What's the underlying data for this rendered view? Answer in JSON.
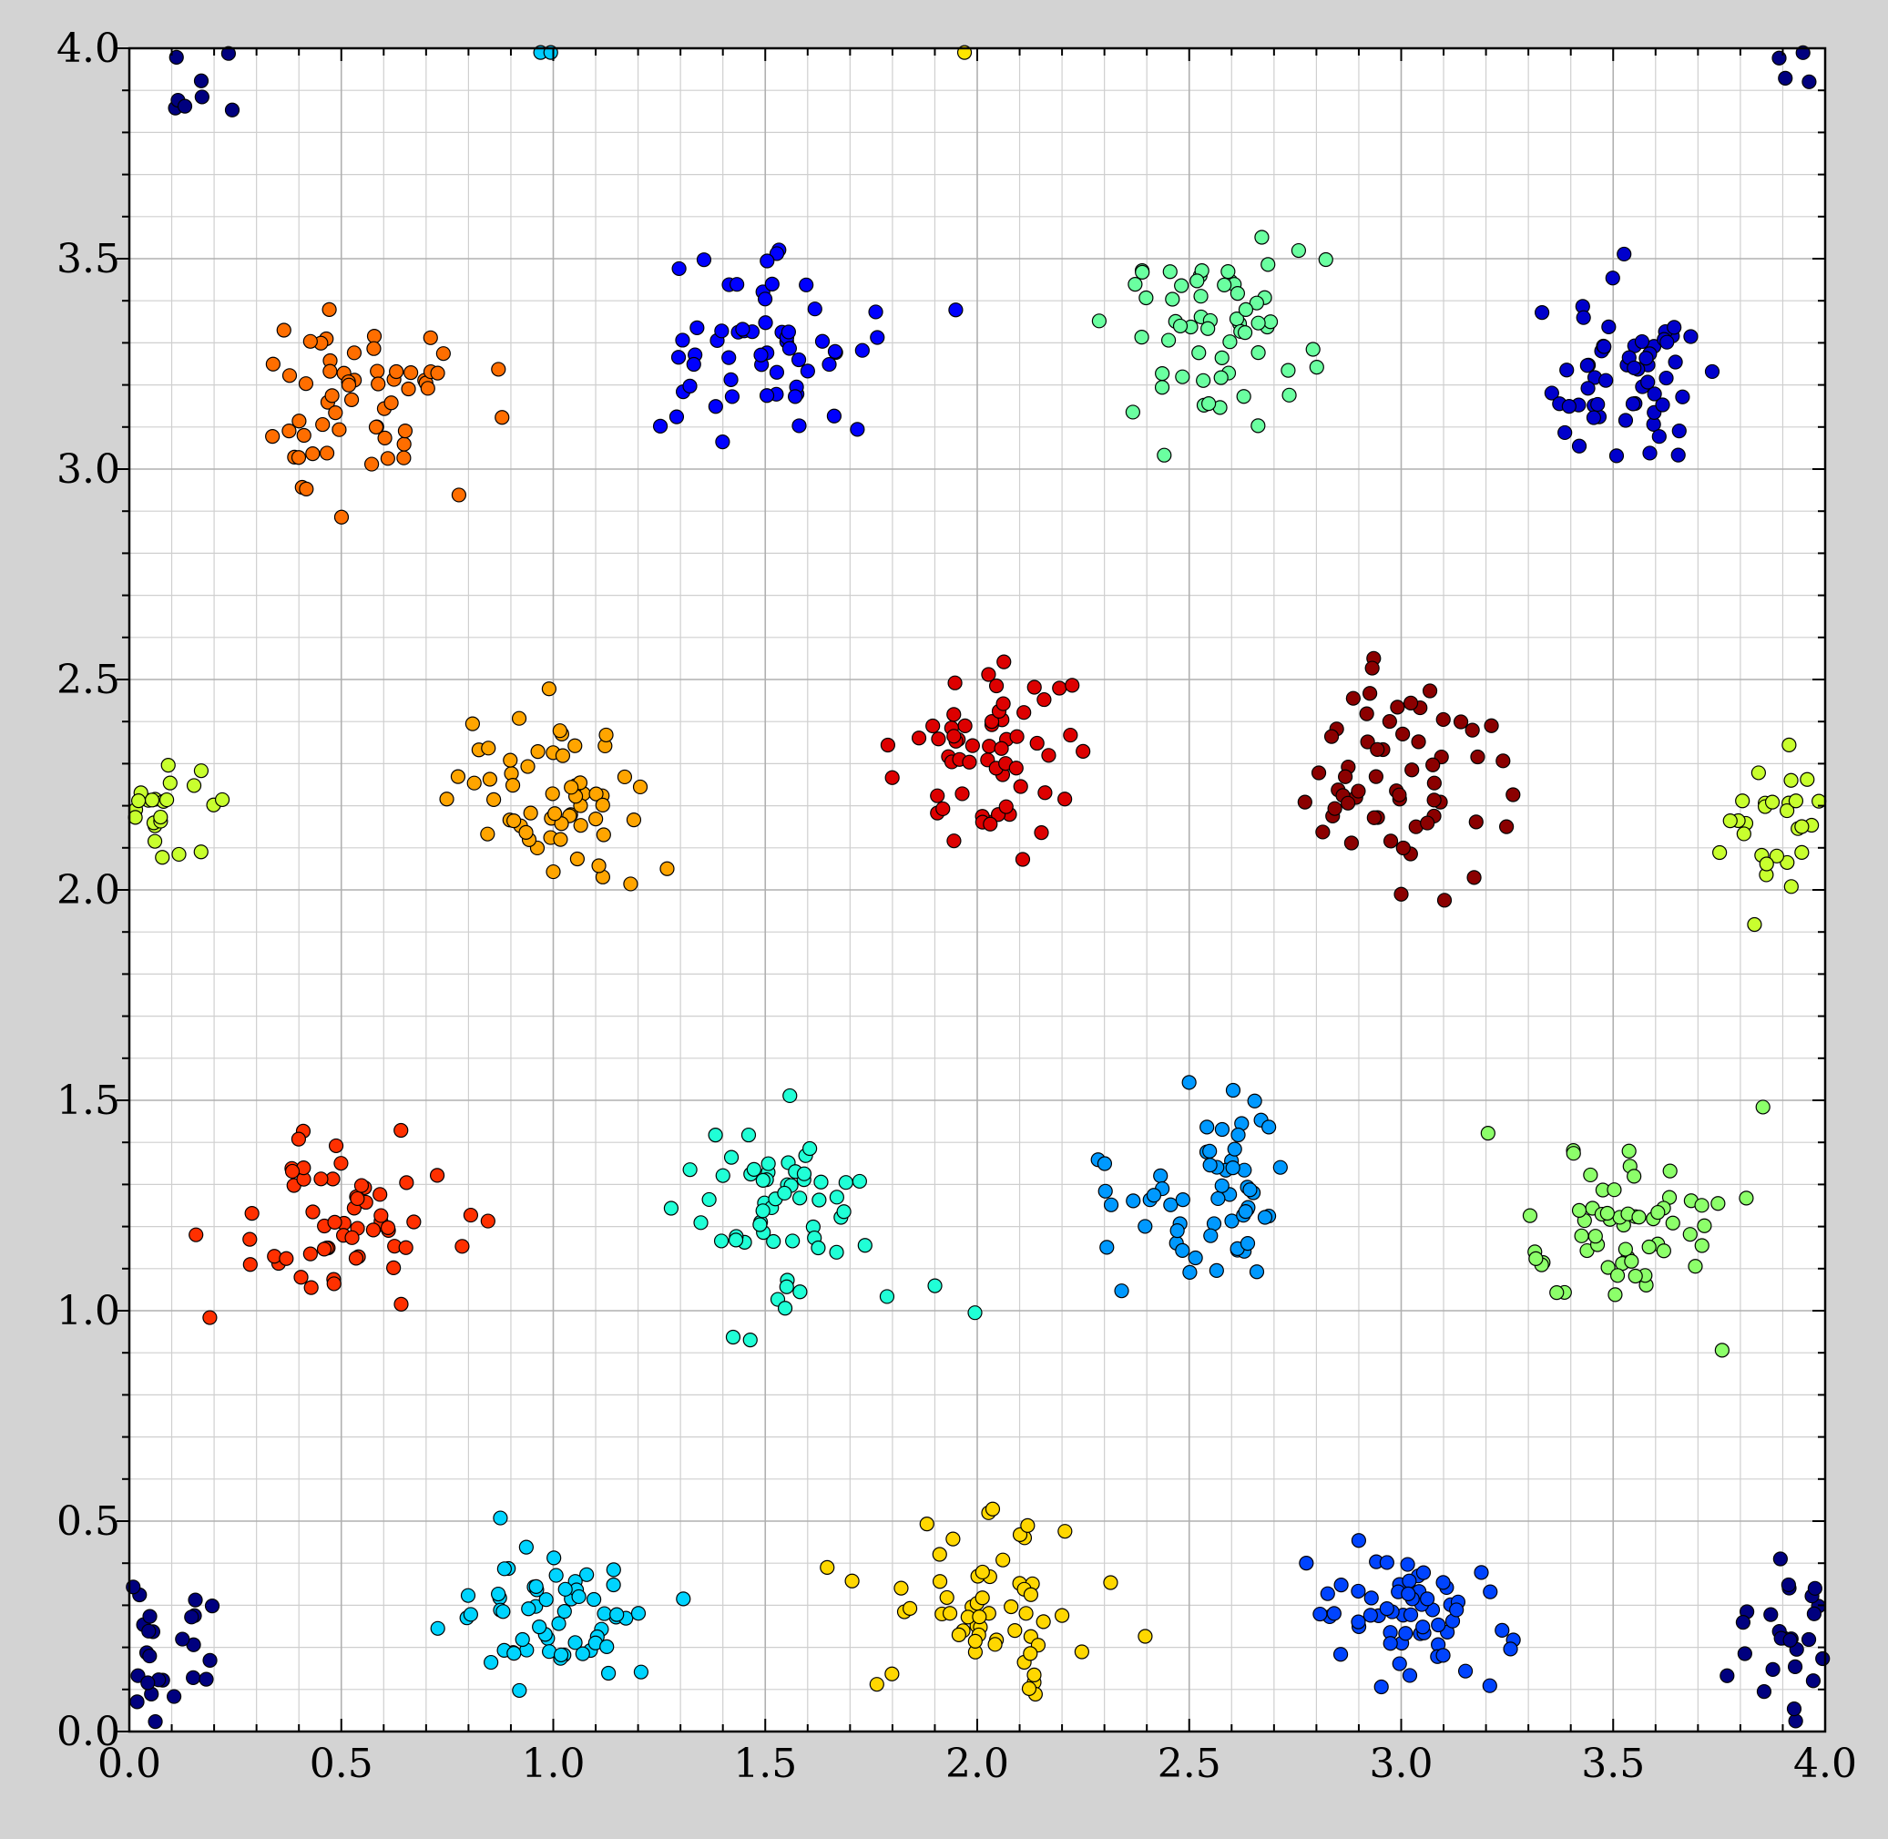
{
  "chart_data": {
    "type": "scatter",
    "title": "",
    "xlabel": "",
    "ylabel": "",
    "xlim": [
      0,
      4
    ],
    "ylim": [
      0,
      4
    ],
    "x_ticks": [
      "0.0",
      "0.5",
      "1.0",
      "1.5",
      "2.0",
      "2.5",
      "3.0",
      "3.5",
      "4.0"
    ],
    "y_ticks": [
      "0.0",
      "0.5",
      "1.0",
      "1.5",
      "2.0",
      "2.5",
      "3.0",
      "3.5",
      "4.0"
    ],
    "x_tick_values": [
      0,
      0.5,
      1,
      1.5,
      2,
      2.5,
      3,
      3.5,
      4
    ],
    "y_tick_values": [
      0,
      0.5,
      1,
      1.5,
      2,
      2.5,
      3,
      3.5,
      4
    ],
    "minor_step": 0.1,
    "grid": true,
    "legend": "none",
    "point_edge_color": "#000000",
    "clusters": [
      {
        "color": "#00007f",
        "center": [
          0.1,
          0.2
        ],
        "spread": [
          0.07,
          0.08
        ],
        "count": 26,
        "seed": 11
      },
      {
        "color": "#00007f",
        "center": [
          3.9,
          0.22
        ],
        "spread": [
          0.06,
          0.08
        ],
        "count": 28,
        "seed": 12
      },
      {
        "color": "#00007f",
        "center": [
          0.14,
          3.92
        ],
        "spread": [
          0.04,
          0.05
        ],
        "count": 9,
        "seed": 13
      },
      {
        "color": "#00007f",
        "center": [
          3.94,
          3.95
        ],
        "spread": [
          0.03,
          0.03
        ],
        "count": 4,
        "seed": 14
      },
      {
        "color": "#00ccff",
        "center": [
          1.04,
          3.99
        ],
        "spread": [
          0.05,
          0.0
        ],
        "count": 2,
        "seed": 15
      },
      {
        "color": "#ffe500",
        "center": [
          1.97,
          3.99
        ],
        "spread": [
          0.0,
          0.0
        ],
        "count": 1,
        "seed": 16
      },
      {
        "color": "#00d4ff",
        "center": [
          1.0,
          0.27
        ],
        "spread": [
          0.12,
          0.09
        ],
        "count": 60,
        "seed": 21
      },
      {
        "color": "#ffd700",
        "center": [
          2.02,
          0.32
        ],
        "spread": [
          0.12,
          0.1
        ],
        "count": 60,
        "seed": 22
      },
      {
        "color": "#0044ff",
        "center": [
          3.0,
          0.27
        ],
        "spread": [
          0.12,
          0.09
        ],
        "count": 60,
        "seed": 23
      },
      {
        "color": "#ff3000",
        "center": [
          0.5,
          1.22
        ],
        "spread": [
          0.12,
          0.1
        ],
        "count": 60,
        "seed": 31
      },
      {
        "color": "#20ffd6",
        "center": [
          1.55,
          1.25
        ],
        "spread": [
          0.12,
          0.11
        ],
        "count": 60,
        "seed": 32
      },
      {
        "color": "#0099ff",
        "center": [
          2.55,
          1.28
        ],
        "spread": [
          0.12,
          0.1
        ],
        "count": 60,
        "seed": 33
      },
      {
        "color": "#8cff6a",
        "center": [
          3.52,
          1.22
        ],
        "spread": [
          0.13,
          0.11
        ],
        "count": 60,
        "seed": 34
      },
      {
        "color": "#c8ff2e",
        "center": [
          0.1,
          2.18
        ],
        "spread": [
          0.07,
          0.07
        ],
        "count": 26,
        "seed": 41
      },
      {
        "color": "#c8ff2e",
        "center": [
          3.88,
          2.18
        ],
        "spread": [
          0.07,
          0.08
        ],
        "count": 30,
        "seed": 42
      },
      {
        "color": "#ffa500",
        "center": [
          1.0,
          2.2
        ],
        "spread": [
          0.12,
          0.12
        ],
        "count": 60,
        "seed": 43
      },
      {
        "color": "#dd0000",
        "center": [
          2.02,
          2.32
        ],
        "spread": [
          0.12,
          0.12
        ],
        "count": 60,
        "seed": 44
      },
      {
        "color": "#8b0000",
        "center": [
          3.0,
          2.28
        ],
        "spread": [
          0.12,
          0.11
        ],
        "count": 60,
        "seed": 45
      },
      {
        "color": "#ff6e00",
        "center": [
          0.53,
          3.15
        ],
        "spread": [
          0.12,
          0.11
        ],
        "count": 60,
        "seed": 51
      },
      {
        "color": "#0000ff",
        "center": [
          1.55,
          3.3
        ],
        "spread": [
          0.12,
          0.12
        ],
        "count": 60,
        "seed": 52
      },
      {
        "color": "#6affa0",
        "center": [
          2.55,
          3.32
        ],
        "spread": [
          0.12,
          0.1
        ],
        "count": 60,
        "seed": 53
      },
      {
        "color": "#0000cc",
        "center": [
          3.52,
          3.22
        ],
        "spread": [
          0.12,
          0.11
        ],
        "count": 60,
        "seed": 54
      }
    ]
  }
}
